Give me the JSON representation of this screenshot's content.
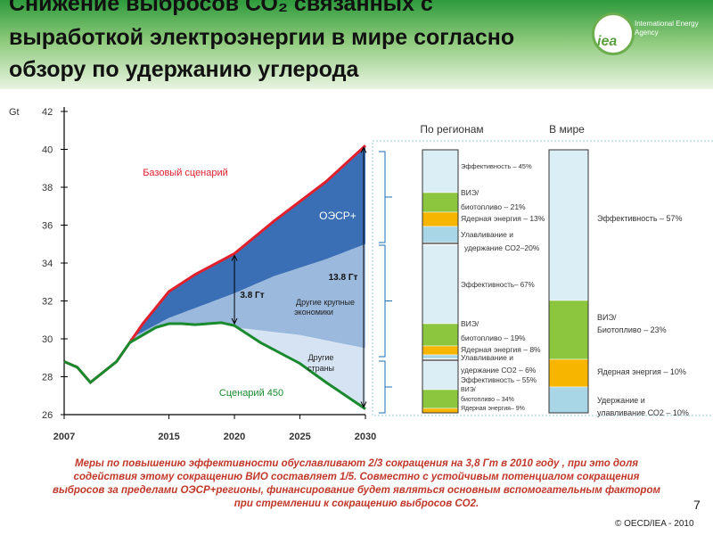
{
  "header": {
    "title_line1": "Снижение выбросов СО₂ связанных с",
    "title_line2": "выработкой электроэнергии в мире согласно",
    "title_line3": "обзору по удержанию углерода",
    "logo_text": "iea",
    "logo_org": "International Energy Agency"
  },
  "chart_data": {
    "type": "area",
    "ylabel": "Gt",
    "yticks": [
      26,
      28,
      30,
      32,
      34,
      36,
      38,
      40,
      42
    ],
    "xticks": [
      2007,
      2015,
      2020,
      2025,
      2030
    ],
    "ylim": [
      26,
      42
    ],
    "xlim": [
      2007,
      2030
    ],
    "series": [
      {
        "name": "Базовый сценарий",
        "x": [
          2007,
          2008,
          2009,
          2011,
          2012,
          2013,
          2015,
          2017,
          2020,
          2023,
          2027,
          2030
        ],
        "y": [
          28.8,
          28.5,
          27.7,
          28.8,
          29.8,
          30.8,
          32.5,
          33.4,
          34.5,
          36.2,
          38.3,
          40.2
        ]
      },
      {
        "name": "Сценарий 450",
        "x": [
          2007,
          2008,
          2009,
          2011,
          2012,
          2013,
          2014,
          2015,
          2016,
          2017,
          2018,
          2019,
          2020,
          2022,
          2025,
          2027,
          2030
        ],
        "y": [
          28.8,
          28.5,
          27.7,
          28.8,
          29.8,
          30.2,
          30.6,
          30.8,
          30.8,
          30.75,
          30.8,
          30.85,
          30.7,
          29.8,
          28.7,
          27.7,
          26.3
        ]
      }
    ],
    "bands": [
      {
        "name": "ОЭСР+",
        "x": [
          2012,
          2015,
          2020,
          2023,
          2027,
          2030
        ],
        "lower": [
          30.0,
          31.1,
          32.4,
          33.3,
          34.2,
          35.0
        ]
      },
      {
        "name": "Другие крупные экономики",
        "x": [
          2012,
          2015,
          2020,
          2025,
          2030
        ],
        "lower": [
          29.9,
          30.4,
          30.6,
          30.2,
          29.5
        ]
      },
      {
        "name": "Другие страны",
        "x": [
          2012,
          2015,
          2020,
          2025,
          2030
        ],
        "lower": [
          29.8,
          30.8,
          30.7,
          28.7,
          26.3
        ]
      }
    ],
    "annotations": {
      "base": "Базовый сценарий",
      "s450": "Сценарий 450",
      "oecd": "ОЭСР+",
      "gap_big": "13.8 Гт",
      "gap_small": "3.8 Гт",
      "major": "Другие крупные экономики",
      "others": "Другие страны"
    },
    "side": {
      "regions_header": "По регионам",
      "world_header": "В мире",
      "regions": [
        {
          "efficiency": "Эффективность – 45%",
          "renew": "ВИЭ/ биотопливо – 21%",
          "nuclear": "Ядерная энергия – 13%",
          "ccs": "Улавливание и удержание СО2–20%"
        },
        {
          "efficiency": "Эффективность– 67%",
          "renew": "ВИЭ/ биотопливо – 19%",
          "nuclear": "Ядерная энергия – 8%",
          "ccs": "Улавливание и удержание СО2 – 6%"
        },
        {
          "efficiency": "Эффективность – 55%",
          "renew": "ВИЭ/ биотопливо – 34%",
          "nuclear": "Ядерная энергия– 9%"
        }
      ],
      "world": {
        "efficiency": "Эффективность – 57%",
        "renew": "ВИЭ/ Биотопливо – 23%",
        "nuclear": "Ядерная энергия – 10%",
        "ccs": "Удержание и улавливание СО2 – 10%"
      }
    }
  },
  "footnote": "Меры по повышению эффективности обуславливают 2/3 сокращения на 3,8 Гт в 2010 году , при это доля содействия этому сокращению ВИО составляет 1/5. Совместно с устойчивым потенциалом сокращения выбросов за пределами ОЭСР+регионы, финансирование будет являться основным вспомогательным фактором при стремлении к сокращению выбросов СО2.",
  "page_number": "7",
  "copyright": "© OECD/IEA - 2010",
  "colors": {
    "base_line": "#e0202c",
    "s450_line": "#1a8a2e",
    "oecd_fill": "#3a6fb5",
    "major_fill": "#9bb9dd",
    "others_fill": "#d6e3f2",
    "renew": "#8cc63f",
    "nuclear": "#f7b500",
    "ccs": "#a8d6e6",
    "efficiency": "#dbeef6"
  }
}
